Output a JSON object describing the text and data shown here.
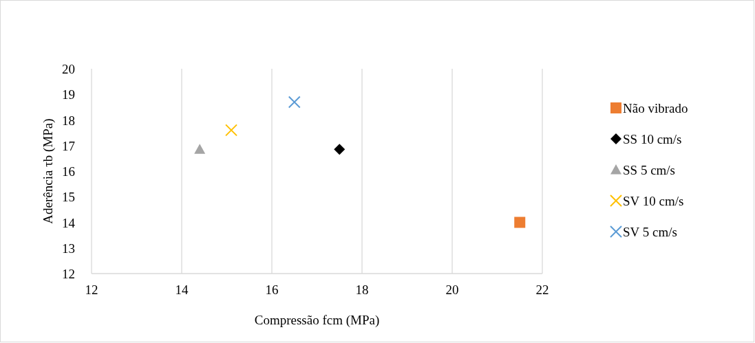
{
  "chart_data": {
    "type": "scatter",
    "xlabel": "Compressão fcm (MPa)",
    "ylabel": "Aderência τb (MPa)",
    "xlim": [
      12,
      22
    ],
    "xticks": [
      12,
      14,
      16,
      18,
      20,
      22
    ],
    "ylim": [
      12,
      20
    ],
    "yticks": [
      12,
      13,
      14,
      15,
      16,
      17,
      18,
      19,
      20
    ],
    "grid": "x",
    "legend": "right",
    "series": [
      {
        "name": "Não vibrado",
        "color": "#ed7d31",
        "marker": "square",
        "x": [
          21.5
        ],
        "values": [
          14.0
        ]
      },
      {
        "name": "SS 10 cm/s",
        "color": "#000000",
        "marker": "diamond",
        "x": [
          17.5
        ],
        "values": [
          16.85
        ]
      },
      {
        "name": "SS 5 cm/s",
        "color": "#a5a5a5",
        "marker": "triangle",
        "x": [
          14.4
        ],
        "values": [
          16.85
        ]
      },
      {
        "name": "SV 10 cm/s",
        "color": "#ffc000",
        "marker": "cross",
        "x": [
          15.1
        ],
        "values": [
          17.6
        ]
      },
      {
        "name": "SV 5 cm/s",
        "color": "#5b9bd5",
        "marker": "cross",
        "x": [
          16.5
        ],
        "values": [
          18.7
        ]
      }
    ]
  }
}
